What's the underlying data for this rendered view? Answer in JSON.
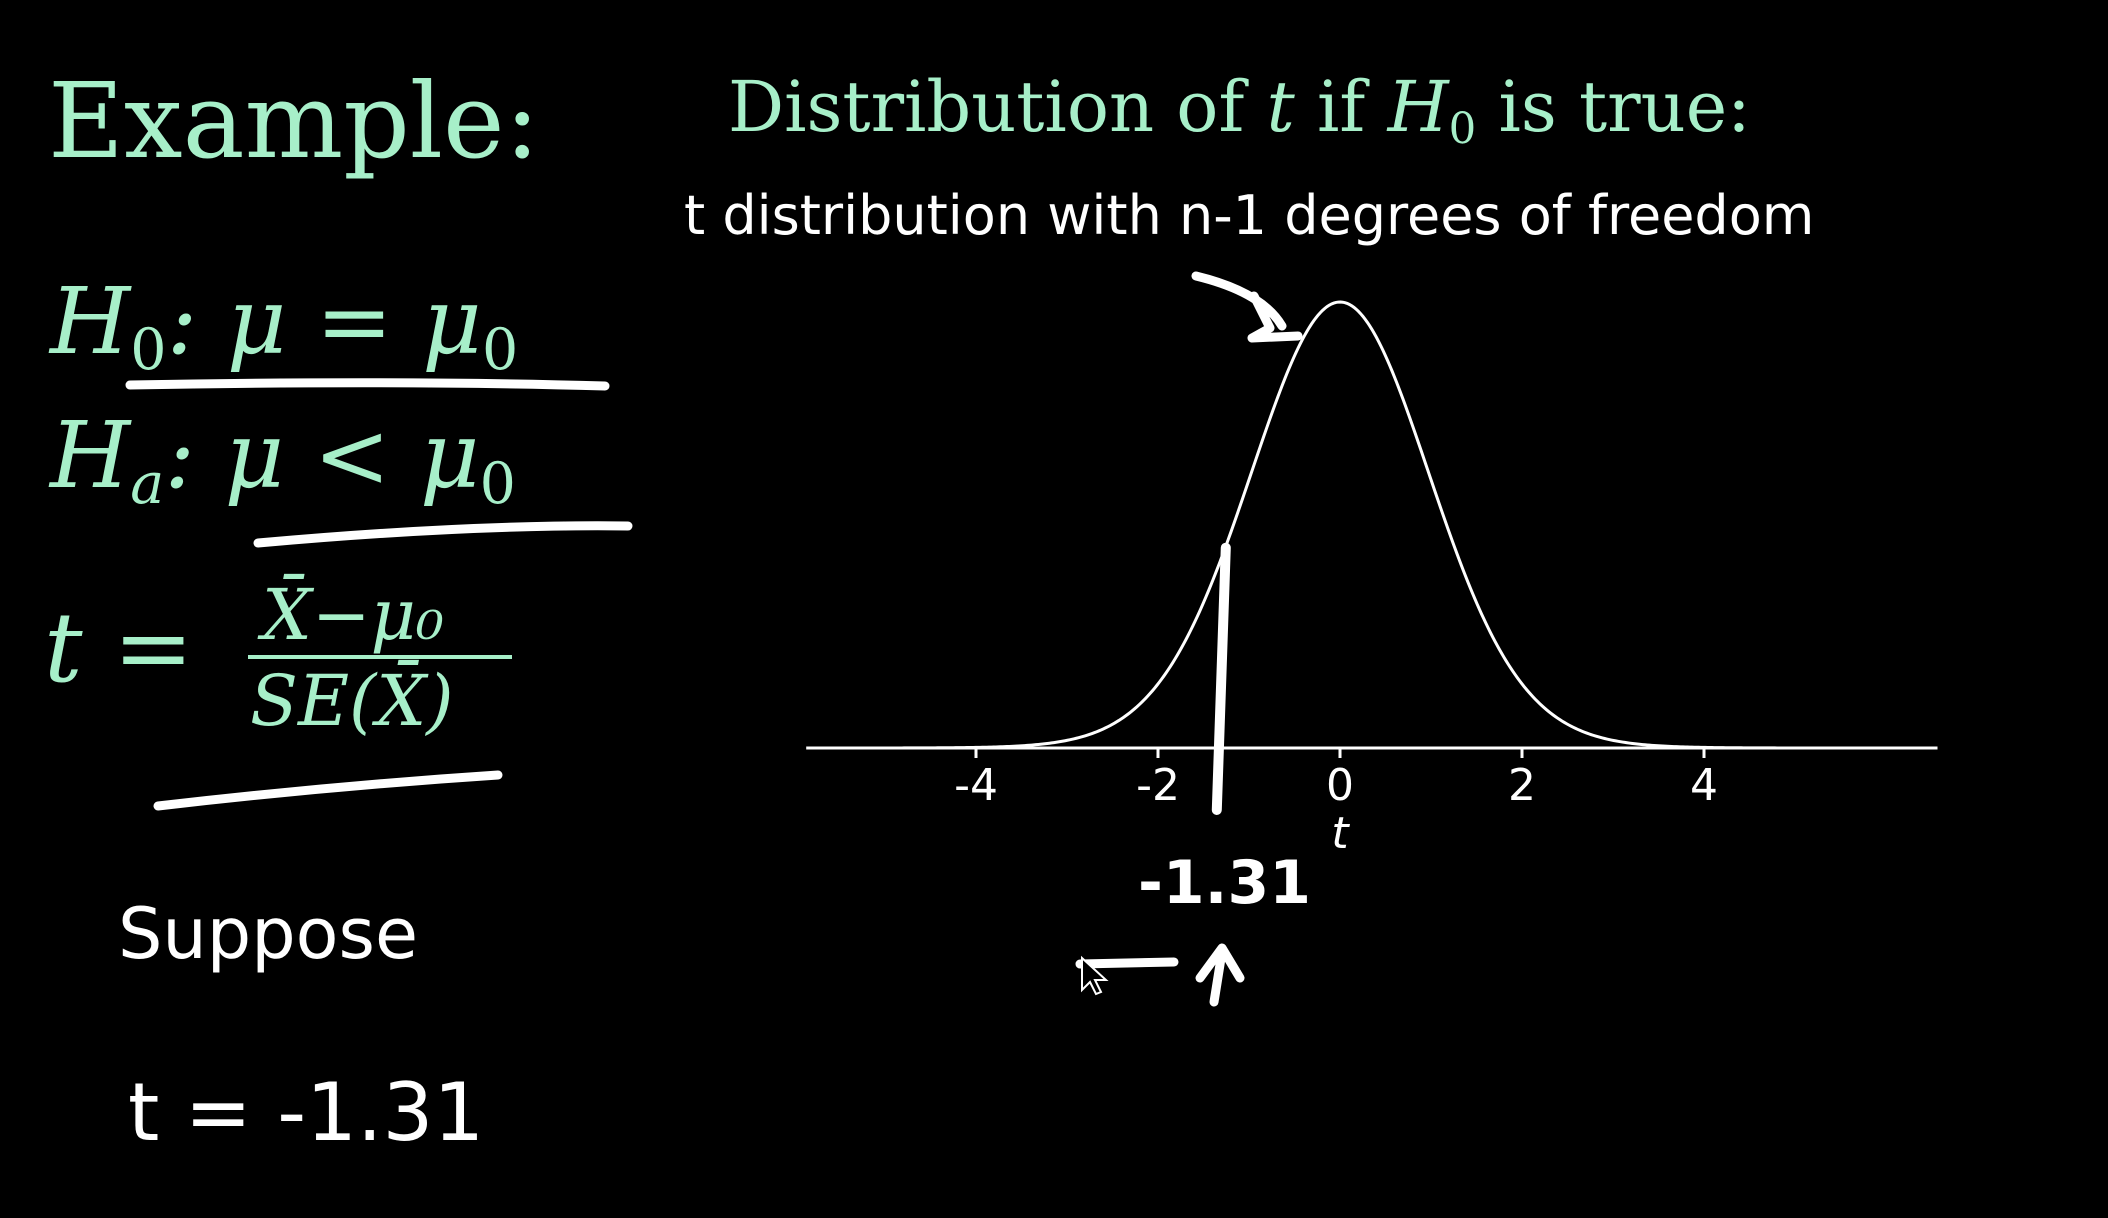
{
  "left": {
    "example_label": "Example:",
    "h0": {
      "H": "H",
      "sub": "0",
      "rest": ": μ = μ",
      "rest_sub": "0"
    },
    "ha": {
      "H": "H",
      "sub": "a",
      "rest": ": μ < μ",
      "rest_sub": "0"
    },
    "t_formula": {
      "lhs": "t =",
      "numerator": "X̄−μ₀",
      "denominator": "SE(X̄)"
    },
    "suppose": "Suppose",
    "t_value": "t = -1.31"
  },
  "right": {
    "title": {
      "pre": "Distribution of ",
      "t": "t",
      "mid": " if ",
      "H": "H",
      "sub": "0",
      "post": " is true:"
    },
    "subtitle": "t distribution with n-1 degrees of freedom",
    "marker_label": "-1.31"
  },
  "chart_data": {
    "type": "line",
    "xlabel": "t",
    "ylabel": "",
    "xlim": [
      -5.8,
      6.5
    ],
    "xticks": [
      -4,
      -2,
      0,
      2,
      4
    ],
    "xtick_labels": [
      "-4",
      "-2",
      "0",
      "2",
      "4"
    ],
    "series": [
      {
        "kind": "t density",
        "df": 30
      }
    ],
    "observed_t": -1.31,
    "grid": false,
    "colors": {
      "curve": "#ffffff",
      "axis": "#ffffff",
      "annotation": "#ffffff",
      "text_green": "#a7efc9"
    }
  }
}
